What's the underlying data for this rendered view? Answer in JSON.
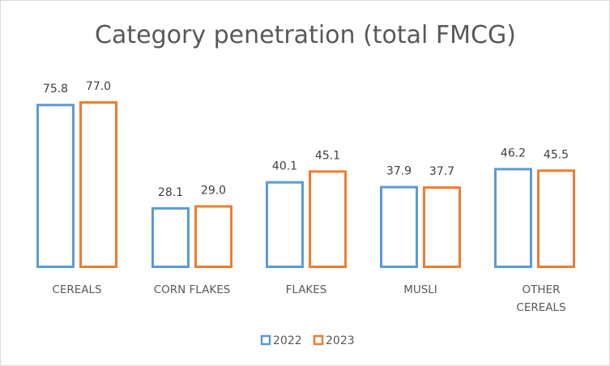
{
  "chart_data": {
    "type": "bar",
    "title": "Category penetration (total FMCG)",
    "categories": [
      [
        "CEREALS"
      ],
      [
        "CORN FLAKES"
      ],
      [
        "FLAKES"
      ],
      [
        "MUSLI"
      ],
      [
        "OTHER",
        "CEREALS"
      ]
    ],
    "series": [
      {
        "name": "2022",
        "values": [
          75.8,
          28.1,
          40.1,
          37.9,
          46.2
        ],
        "labels": [
          "75.8",
          "28.1",
          "40.1",
          "37.9",
          "46.2"
        ],
        "color": "#5b9bd5"
      },
      {
        "name": "2023",
        "values": [
          77.0,
          29.0,
          45.1,
          37.7,
          45.5
        ],
        "labels": [
          "77.0",
          "29.0",
          "45.1",
          "37.7",
          "45.5"
        ],
        "color": "#ed7d31"
      }
    ],
    "ylim": [
      0,
      77.0
    ],
    "grid": false,
    "legend_position": "bottom",
    "bar_style": "outline"
  }
}
